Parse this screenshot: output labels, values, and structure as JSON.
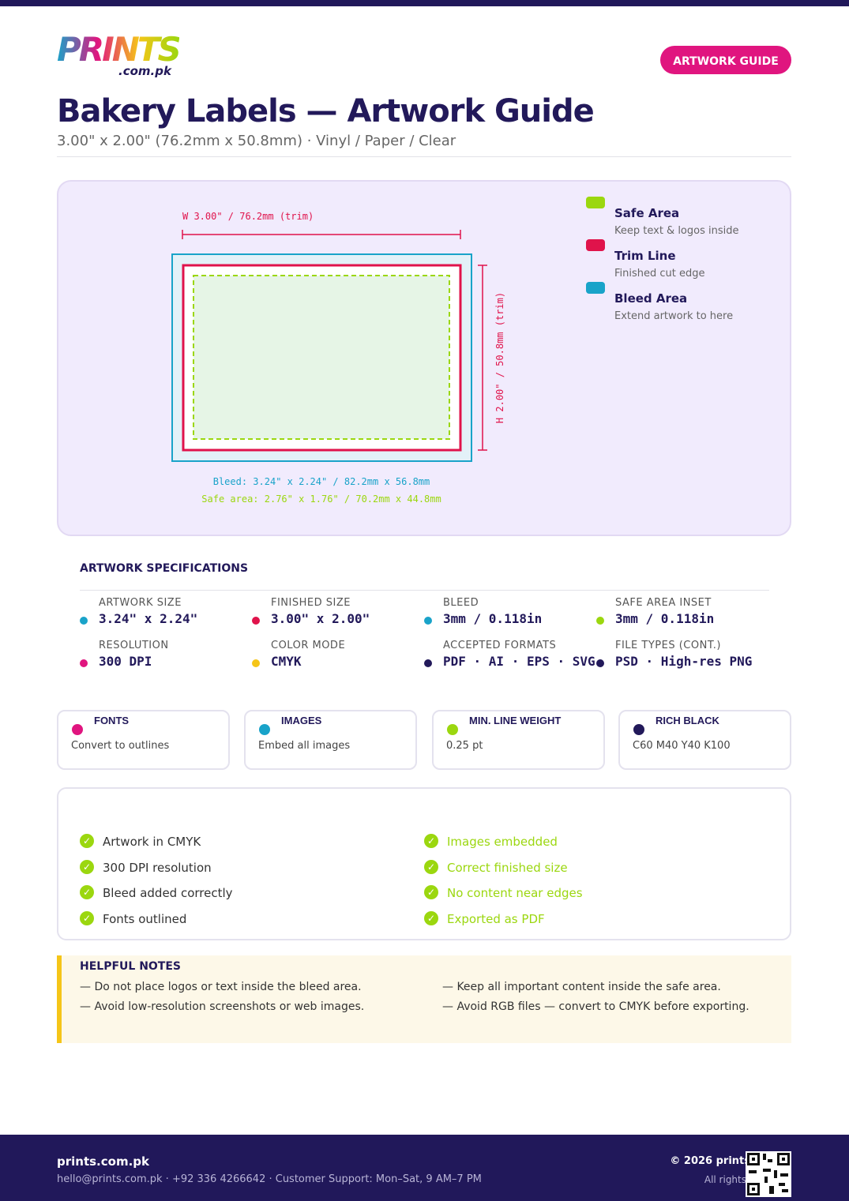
{
  "logo": {
    "main": "PRINTS",
    "sub": ".com.pk"
  },
  "header": {
    "badge": "ARTWORK GUIDE",
    "title": "Bakery Labels — Artwork Guide",
    "subtitle": "3.00\" x 2.00\" (76.2mm x 50.8mm) · Vinyl / Paper / Clear"
  },
  "diagram": {
    "width_label": "W 3.00\" / 76.2mm (trim)",
    "height_label": "H 2.00\" / 50.8mm (trim)",
    "bleed_note": "Bleed: 3.24\" x 2.24\" / 82.2mm x 56.8mm",
    "safe_note": "Safe area: 2.76\" x 1.76\" / 70.2mm x 44.8mm"
  },
  "legend": [
    {
      "title": "Safe Area",
      "desc": "Keep text & logos inside"
    },
    {
      "title": "Trim Line",
      "desc": "Finished cut edge"
    },
    {
      "title": "Bleed Area",
      "desc": "Extend artwork to here"
    }
  ],
  "specs": {
    "title": "ARTWORK SPECIFICATIONS",
    "items": [
      {
        "label": "ARTWORK SIZE",
        "value": "3.24\" x 2.24\""
      },
      {
        "label": "FINISHED SIZE",
        "value": "3.00\" x 2.00\""
      },
      {
        "label": "BLEED",
        "value": "3mm / 0.118in"
      },
      {
        "label": "SAFE AREA INSET",
        "value": "3mm / 0.118in"
      },
      {
        "label": "RESOLUTION",
        "value": "300 DPI"
      },
      {
        "label": "COLOR MODE",
        "value": "CMYK"
      },
      {
        "label": "ACCEPTED FORMATS",
        "value": "PDF · AI · EPS · SVG"
      },
      {
        "label": "FILE TYPES (CONT.)",
        "value": "PSD · High-res PNG"
      }
    ]
  },
  "cards": [
    {
      "title": "FONTS",
      "text": "Convert to outlines"
    },
    {
      "title": "IMAGES",
      "text": "Embed all images"
    },
    {
      "title": "MIN. LINE WEIGHT",
      "text": "0.25 pt"
    },
    {
      "title": "RICH BLACK",
      "text": "C60 M40 Y40 K100"
    }
  ],
  "checklist": {
    "left": [
      "Artwork in CMYK",
      "300 DPI resolution",
      "Bleed added correctly",
      "Fonts outlined"
    ],
    "right": [
      "Images embedded",
      "Correct finished size",
      "No content near edges",
      "Exported as PDF"
    ]
  },
  "notes": {
    "title": "HELPFUL NOTES",
    "items": [
      "— Do not place logos or text inside the bleed area.",
      "— Keep all important content inside the safe area.",
      "— Avoid low-resolution screenshots or web images.",
      "— Avoid RGB files — convert to CMYK before exporting."
    ]
  },
  "footer": {
    "brand": "prints.com.pk",
    "contact": "hello@prints.com.pk · +92 336 4266642 · Customer Support: Mon–Sat, 9 AM–7 PM",
    "copyright": "© 2026 prints",
    "rights": "All rights"
  }
}
